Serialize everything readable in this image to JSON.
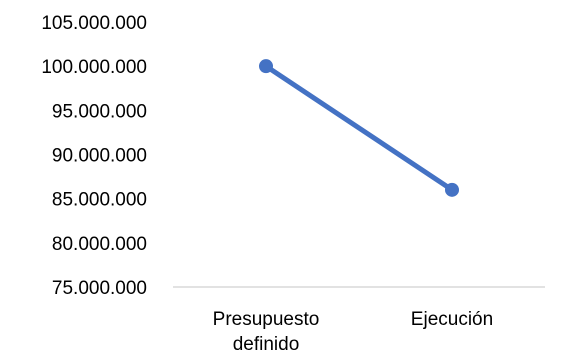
{
  "chart_data": {
    "type": "line",
    "categories": [
      "Presupuesto definido",
      "Ejecución"
    ],
    "category_label_lines": [
      [
        "Presupuesto",
        "definido"
      ],
      [
        "Ejecución"
      ]
    ],
    "series": [
      {
        "values": [
          100000000,
          86000000
        ],
        "color": "#4472C4"
      }
    ],
    "ylim": [
      75000000,
      105000000
    ],
    "yticks": [
      75000000,
      80000000,
      85000000,
      90000000,
      95000000,
      100000000,
      105000000
    ],
    "ytick_labels": [
      "75.000.000",
      "80.000.000",
      "85.000.000",
      "90.000.000",
      "95.000.000",
      "100.000.000",
      "105.000.000"
    ],
    "grid": false,
    "axis_color": "#d9d9d9"
  }
}
